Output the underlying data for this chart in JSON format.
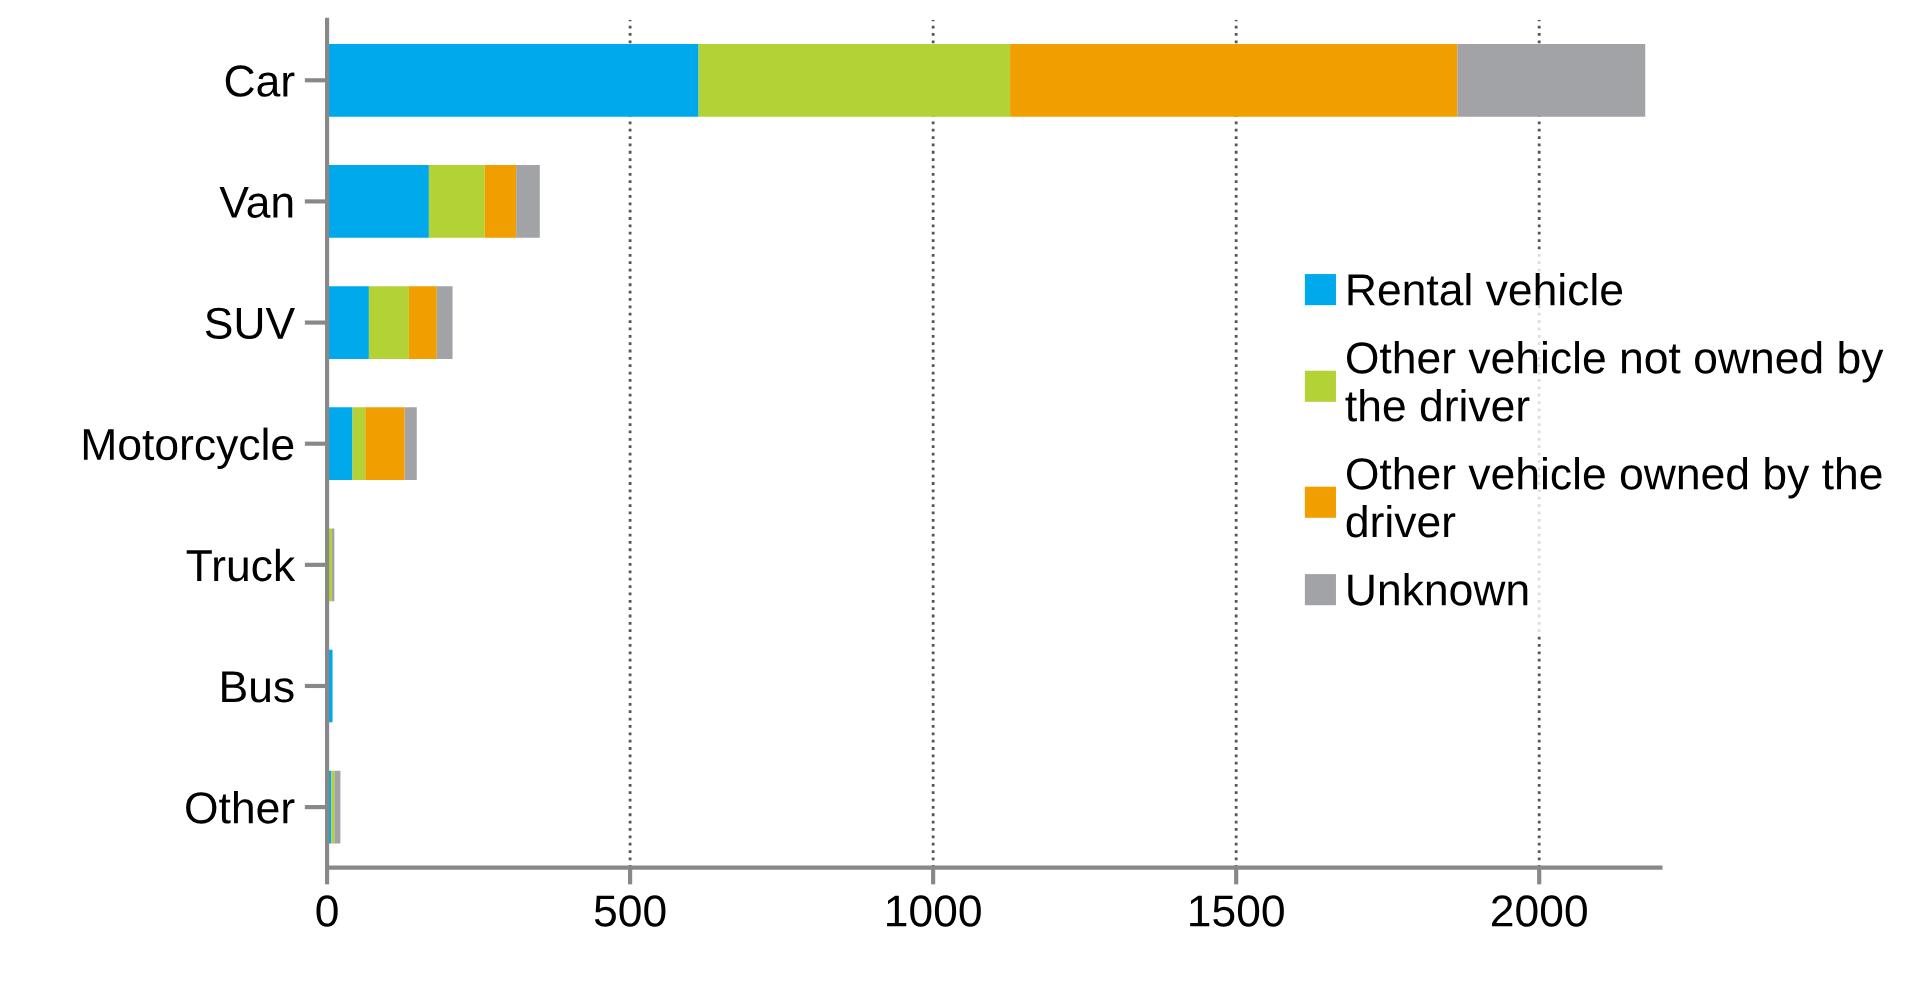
{
  "chart_data": {
    "type": "bar",
    "orientation": "horizontal",
    "stacked": true,
    "categories": [
      "Car",
      "Van",
      "SUV",
      "Motorcycle",
      "Truck",
      "Bus",
      "Other"
    ],
    "series": [
      {
        "name": "Rental vehicle",
        "color": "#00a8ec",
        "values": [
          613,
          168,
          69,
          42,
          null,
          9,
          7
        ]
      },
      {
        "name": "Other vehicle not owned by the driver",
        "color": "#b2d235",
        "values": [
          514,
          92,
          66,
          21,
          8,
          0,
          5
        ]
      },
      {
        "name": "Other vehicle owned by the driver",
        "color": "#f09e00",
        "values": [
          738,
          52,
          46,
          65,
          0,
          0,
          0
        ]
      },
      {
        "name": "Unknown",
        "color": "#a1a3a6",
        "values": [
          310,
          39,
          26,
          20,
          4,
          0,
          10
        ]
      }
    ],
    "xlim": [
      0,
      2200
    ],
    "xticks": [
      0,
      500,
      1000,
      1500,
      2000
    ],
    "grid": "x",
    "legend": "right"
  }
}
